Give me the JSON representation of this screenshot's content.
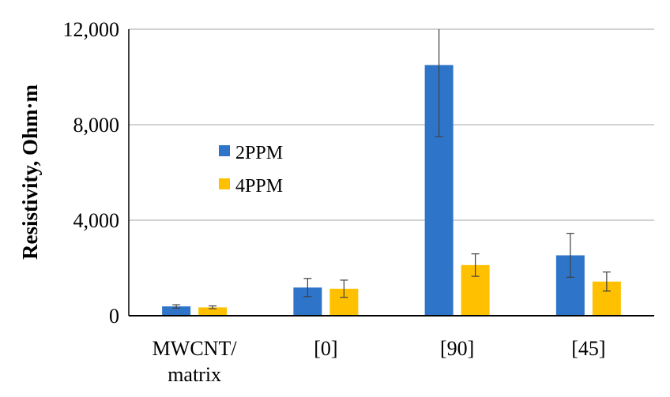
{
  "chart_data": {
    "type": "bar",
    "title": "",
    "xlabel": "",
    "ylabel": "Resistivity, Ohm·m",
    "ylim": [
      0,
      12000
    ],
    "yticks": [
      0,
      4000,
      8000,
      12000
    ],
    "ytick_labels": [
      "0",
      "4,000",
      "8,000",
      "12,000"
    ],
    "grid": "horizontal",
    "legend_position": "center-left",
    "categories": [
      [
        "MWCNT/",
        "matrix"
      ],
      [
        "[0]"
      ],
      [
        "[90]"
      ],
      [
        "[45]"
      ]
    ],
    "series": [
      {
        "name": "2PPM",
        "color": "#2E75C9",
        "values": [
          390,
          1180,
          10500,
          2530
        ],
        "errors": [
          70,
          380,
          3000,
          920
        ]
      },
      {
        "name": "4PPM",
        "color": "#FFC000",
        "values": [
          350,
          1130,
          2120,
          1430
        ],
        "errors": [
          60,
          360,
          470,
          400
        ]
      }
    ]
  }
}
